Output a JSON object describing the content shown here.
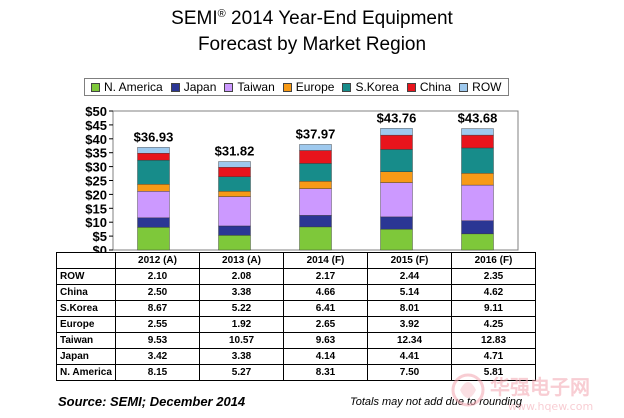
{
  "title_line1": "SEMI",
  "title_reg": "®",
  "title_line1_rest": " 2014 Year-End Equipment",
  "title_line2": "Forecast by Market Region",
  "source": "Source: SEMI; December 2014",
  "note": "Totals may not add due to rounding",
  "watermark": {
    "brand": "华强电子网",
    "url": "www.hqew.com"
  },
  "chart_data": {
    "type": "bar",
    "stacked": true,
    "categories": [
      "2012 (A)",
      "2013 (A)",
      "2014 (F)",
      "2015 (F)",
      "2016 (F)"
    ],
    "totals": [
      "$36.93",
      "$31.82",
      "$37.97",
      "$43.76",
      "$43.68"
    ],
    "ylim": [
      0,
      50
    ],
    "yticks": [
      "$0",
      "$5",
      "$10",
      "$15",
      "$20",
      "$25",
      "$30",
      "$35",
      "$40",
      "$45",
      "$50"
    ],
    "series": [
      {
        "name": "N. America",
        "color": "#7ec83a",
        "values": [
          8.15,
          5.27,
          8.31,
          7.5,
          5.81
        ]
      },
      {
        "name": "Japan",
        "color": "#2b3694",
        "values": [
          3.42,
          3.38,
          4.14,
          4.41,
          4.71
        ]
      },
      {
        "name": "Taiwan",
        "color": "#cc99ff",
        "values": [
          9.53,
          10.57,
          9.63,
          12.34,
          12.83
        ]
      },
      {
        "name": "Europe",
        "color": "#f79a16",
        "values": [
          2.55,
          1.92,
          2.65,
          3.92,
          4.25
        ]
      },
      {
        "name": "S.Korea",
        "color": "#178c8a",
        "values": [
          8.67,
          5.22,
          6.41,
          8.01,
          9.11
        ]
      },
      {
        "name": "China",
        "color": "#e8141c",
        "values": [
          2.5,
          3.38,
          4.66,
          5.14,
          4.62
        ]
      },
      {
        "name": "ROW",
        "color": "#9ec9ee",
        "values": [
          2.1,
          2.08,
          2.17,
          2.44,
          2.35
        ]
      }
    ],
    "table": {
      "rows": [
        {
          "label": "ROW",
          "values": [
            "2.10",
            "2.08",
            "2.17",
            "2.44",
            "2.35"
          ]
        },
        {
          "label": "China",
          "values": [
            "2.50",
            "3.38",
            "4.66",
            "5.14",
            "4.62"
          ]
        },
        {
          "label": "S.Korea",
          "values": [
            "8.67",
            "5.22",
            "6.41",
            "8.01",
            "9.11"
          ]
        },
        {
          "label": "Europe",
          "values": [
            "2.55",
            "1.92",
            "2.65",
            "3.92",
            "4.25"
          ]
        },
        {
          "label": "Taiwan",
          "values": [
            "9.53",
            "10.57",
            "9.63",
            "12.34",
            "12.83"
          ]
        },
        {
          "label": "Japan",
          "values": [
            "3.42",
            "3.38",
            "4.14",
            "4.41",
            "4.71"
          ]
        },
        {
          "label": "N. America",
          "values": [
            "8.15",
            "5.27",
            "8.31",
            "7.50",
            "5.81"
          ]
        }
      ]
    }
  }
}
